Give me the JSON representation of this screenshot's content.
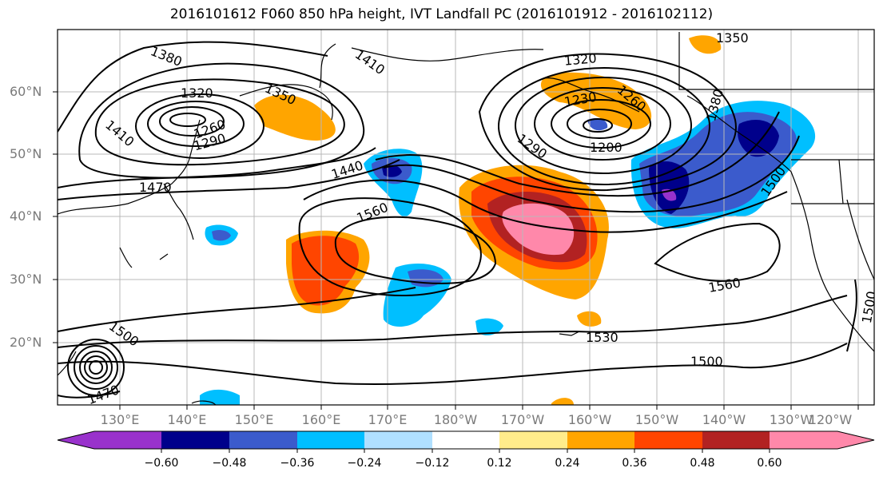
{
  "title": "2016101612 F060 850 hPa height, IVT Landfall PC (2016101912 - 2016102112)",
  "map": {
    "lat_labels": [
      "60°N",
      "50°N",
      "40°N",
      "30°N",
      "20°N"
    ],
    "lon_labels": [
      "130°E",
      "140°E",
      "150°E",
      "160°E",
      "170°E",
      "180°W",
      "170°W",
      "160°W",
      "150°W",
      "140°W",
      "130°W",
      "120°W"
    ],
    "contour_labels": {
      "c1380": "1380",
      "c1410a": "1410",
      "c1320a": "1320",
      "c1260": "1260",
      "c1290a": "1290",
      "c1410b": "1410",
      "c1470a": "1470",
      "c1440": "1440",
      "c1560a": "1560",
      "c1350a": "1350",
      "c1320b": "1320",
      "c1350b": "1350",
      "c1230": "1230",
      "c1260b": "1260",
      "c1380b": "1380",
      "c1200": "1200",
      "c1290b": "1290",
      "c1500a": "1500",
      "c1560b": "1560",
      "c1500b": "1500",
      "c1530": "1530",
      "c1500c": "1500",
      "c1500d": "1500",
      "c1470b": "1470"
    }
  },
  "colorbar": {
    "tick_labels": [
      "−0.60",
      "−0.48",
      "−0.36",
      "−0.24",
      "−0.12",
      "0.12",
      "0.24",
      "0.36",
      "0.48",
      "0.60"
    ],
    "colors": [
      "#9932cc",
      "#00008b",
      "#3b5bcc",
      "#00bfff",
      "#b0e0ff",
      "#ffffff",
      "#ffec8b",
      "#ffa500",
      "#ff4500",
      "#b22222",
      "#ff88aa"
    ]
  }
}
